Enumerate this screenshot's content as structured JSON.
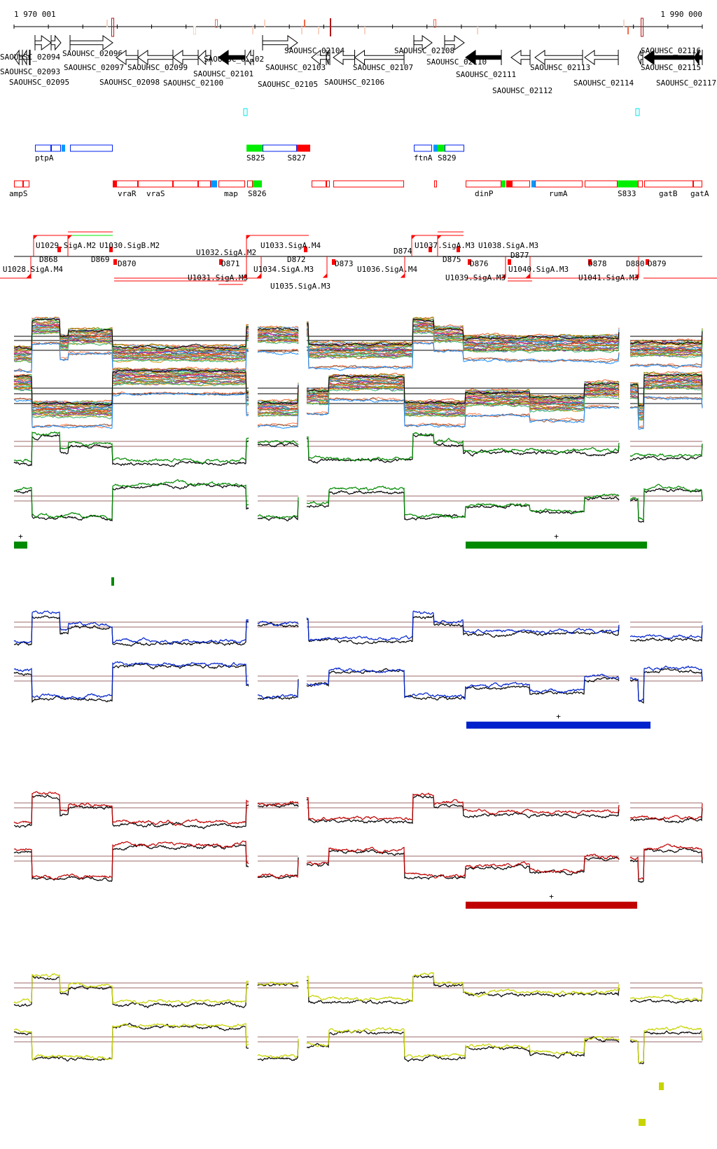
{
  "ruler": {
    "start_label": "1 970 001",
    "end_label": "1 990 000",
    "range_bp": [
      1970001,
      1990000
    ],
    "tick_interval_bp": 1000,
    "markers": [
      {
        "bp": 1972870,
        "color": "#b01818",
        "style": "outline"
      },
      {
        "bp": 1972707,
        "color": "#f7d3c4",
        "style": "fill"
      },
      {
        "bp": 1975250,
        "color": "#f7d3c4",
        "style": "outline"
      },
      {
        "bp": 1975881,
        "color": "#f26a4a",
        "style": "outline"
      },
      {
        "bp": 1976939,
        "color": "#f7d3c4",
        "style": "fill"
      },
      {
        "bp": 1977285,
        "color": "#f7d3c4",
        "style": "fill"
      },
      {
        "bp": 1978363,
        "color": "#f7d3c4",
        "style": "fill"
      },
      {
        "bp": 1978444,
        "color": "#f26a4a",
        "style": "fill"
      },
      {
        "bp": 1978851,
        "color": "#f7d3c4",
        "style": "fill"
      },
      {
        "bp": 1979197,
        "color": "#b01818",
        "style": "fill"
      },
      {
        "bp": 1980194,
        "color": "#f7d3c4",
        "style": "fill"
      },
      {
        "bp": 1982229,
        "color": "#f26a4a",
        "style": "outline"
      },
      {
        "bp": 1983470,
        "color": "#f7d3c4",
        "style": "fill"
      },
      {
        "bp": 1987722,
        "color": "#f7d3c4",
        "style": "fill"
      },
      {
        "bp": 1987844,
        "color": "#f26a4a",
        "style": "fill"
      },
      {
        "bp": 1988251,
        "color": "#b01818",
        "style": "outline"
      }
    ]
  },
  "genes": [
    {
      "name": "SAOUHSC_02093",
      "start": 1970001,
      "end": 1970245,
      "strand": "-",
      "filled": false
    },
    {
      "name": "SAOUHSC_02094",
      "start": 1970245,
      "end": 1970449,
      "strand": "-",
      "filled": false
    },
    {
      "name": "SAOUHSC_02095",
      "start": 1970449,
      "end": 1970470,
      "strand": "-",
      "filled": false
    },
    {
      "name": "SAOUHSC_02096",
      "start": 1970611,
      "end": 1971079,
      "strand": "+",
      "filled": false
    },
    {
      "name": "",
      "start": 1971079,
      "end": 1971364,
      "strand": "+",
      "filled": false
    },
    {
      "name": "SAOUHSC_02097",
      "start": 1971629,
      "end": 1972870,
      "strand": "+",
      "filled": false
    },
    {
      "name": "SAOUHSC_02098",
      "start": 1972972,
      "end": 1973602,
      "strand": "-",
      "filled": false
    },
    {
      "name": "SAOUHSC_02099",
      "start": 1973602,
      "end": 1974619,
      "strand": "-",
      "filled": false
    },
    {
      "name": "SAOUHSC_02100",
      "start": 1974619,
      "end": 1975352,
      "strand": "-",
      "filled": false
    },
    {
      "name": "SAOUHSC_02101",
      "start": 1975352,
      "end": 1975718,
      "strand": "-",
      "filled": false
    },
    {
      "name": "SAOUHSC_02102",
      "start": 1975942,
      "end": 1976715,
      "strand": "-",
      "filled": true
    },
    {
      "name": "SAOUHSC_02103",
      "start": 1976756,
      "end": 1976959,
      "strand": "-",
      "filled": false
    },
    {
      "name": "SAOUHSC_02105",
      "start": 1977223,
      "end": 1978240,
      "strand": "+",
      "filled": false
    },
    {
      "name": "SAOUHSC_02104",
      "start": 1978648,
      "end": 1979075,
      "strand": "-",
      "filled": false
    },
    {
      "name": "",
      "start": 1979075,
      "end": 1979177,
      "strand": "-",
      "filled": false
    },
    {
      "name": "SAOUHSC_02106",
      "start": 1979279,
      "end": 1979900,
      "strand": "-",
      "filled": false
    },
    {
      "name": "SAOUHSC_02107",
      "start": 1979900,
      "end": 1981334,
      "strand": "-",
      "filled": false
    },
    {
      "name": "SAOUHSC_02108",
      "start": 1981619,
      "end": 1982148,
      "strand": "+",
      "filled": false
    },
    {
      "name": "SAOUHSC_02110",
      "start": 1982513,
      "end": 1983083,
      "strand": "+",
      "filled": false
    },
    {
      "name": "SAOUHSC_02111",
      "start": 1983124,
      "end": 1984161,
      "strand": "-",
      "filled": true
    },
    {
      "name": "SAOUHSC_02112",
      "start": 1984446,
      "end": 1984995,
      "strand": "-",
      "filled": false
    },
    {
      "name": "SAOUHSC_02113",
      "start": 1985138,
      "end": 1986521,
      "strand": "-",
      "filled": false
    },
    {
      "name": "SAOUHSC_02114",
      "start": 1986582,
      "end": 1987559,
      "strand": "-",
      "filled": false
    },
    {
      "name": "SAOUHSC_02115",
      "start": 1988128,
      "end": 1988271,
      "strand": "-",
      "filled": false
    },
    {
      "name": "SAOUHSC_02116",
      "start": 1988312,
      "end": 1989756,
      "strand": "-",
      "filled": true
    },
    {
      "name": "SAOUHSC_02117",
      "start": 1989756,
      "end": 1990000,
      "strand": "-",
      "filled": true
    }
  ],
  "small_marks": [
    {
      "bp": 1976715,
      "color": "#00e5ee"
    },
    {
      "bp": 1988107,
      "color": "#00e5ee"
    }
  ],
  "operons_plus": [
    {
      "start": 1970611,
      "end": 1971079,
      "kind": "outline",
      "label": "ptpA"
    },
    {
      "start": 1971079,
      "end": 1971364,
      "kind": "outline",
      "label": ""
    },
    {
      "start": 1971384,
      "end": 1971486,
      "kind": "lightblue",
      "label": ""
    },
    {
      "start": 1971629,
      "end": 1972870,
      "kind": "outline",
      "label": ""
    },
    {
      "start": 1976756,
      "end": 1977223,
      "kind": "green",
      "label": "S825"
    },
    {
      "start": 1977223,
      "end": 1978220,
      "kind": "outline",
      "label": ""
    },
    {
      "start": 1978220,
      "end": 1978607,
      "kind": "red",
      "label": "S827"
    },
    {
      "start": 1981619,
      "end": 1982148,
      "kind": "outline",
      "label": "ftnA"
    },
    {
      "start": 1982188,
      "end": 1982310,
      "kind": "lightblue",
      "label": ""
    },
    {
      "start": 1982310,
      "end": 1982513,
      "kind": "green",
      "label": "S829"
    },
    {
      "start": 1982513,
      "end": 1983083,
      "kind": "outline",
      "label": ""
    }
  ],
  "operons_minus": [
    {
      "start": 1970001,
      "end": 1970265,
      "kind": "outline",
      "label": "ampS"
    },
    {
      "start": 1970265,
      "end": 1970449,
      "kind": "outline",
      "label": ""
    },
    {
      "start": 1972870,
      "end": 1972972,
      "kind": "red",
      "label": ""
    },
    {
      "start": 1972972,
      "end": 1973602,
      "kind": "outline",
      "label": "vraR"
    },
    {
      "start": 1973602,
      "end": 1974619,
      "kind": "outline",
      "label": "vraS"
    },
    {
      "start": 1974619,
      "end": 1975352,
      "kind": "outline",
      "label": ""
    },
    {
      "start": 1975352,
      "end": 1975718,
      "kind": "outline",
      "label": ""
    },
    {
      "start": 1975718,
      "end": 1975901,
      "kind": "lightblue",
      "label": ""
    },
    {
      "start": 1975942,
      "end": 1976715,
      "kind": "outline",
      "label": "map"
    },
    {
      "start": 1976776,
      "end": 1976939,
      "kind": "outline",
      "label": "S826"
    },
    {
      "start": 1976939,
      "end": 1977203,
      "kind": "green",
      "label": ""
    },
    {
      "start": 1978648,
      "end": 1979075,
      "kind": "outline",
      "label": ""
    },
    {
      "start": 1979075,
      "end": 1979177,
      "kind": "outline",
      "label": ""
    },
    {
      "start": 1979279,
      "end": 1981334,
      "kind": "outline",
      "label": ""
    },
    {
      "start": 1982208,
      "end": 1982289,
      "kind": "outline",
      "label": ""
    },
    {
      "start": 1983124,
      "end": 1984161,
      "kind": "outline",
      "label": "dinP"
    },
    {
      "start": 1984161,
      "end": 1984283,
      "kind": "green",
      "label": ""
    },
    {
      "start": 1984303,
      "end": 1984466,
      "kind": "red",
      "label": ""
    },
    {
      "start": 1984466,
      "end": 1984995,
      "kind": "outline",
      "label": ""
    },
    {
      "start": 1985036,
      "end": 1985138,
      "kind": "lightblue",
      "label": ""
    },
    {
      "start": 1985138,
      "end": 1986521,
      "kind": "outline",
      "label": "rumA"
    },
    {
      "start": 1986582,
      "end": 1987538,
      "kind": "outline",
      "label": ""
    },
    {
      "start": 1987538,
      "end": 1988128,
      "kind": "green",
      "label": "S833"
    },
    {
      "start": 1988128,
      "end": 1988271,
      "kind": "outline",
      "label": ""
    },
    {
      "start": 1988312,
      "end": 1989736,
      "kind": "outline",
      "label": "gatB"
    },
    {
      "start": 1989736,
      "end": 1990000,
      "kind": "outline",
      "label": "gatA"
    }
  ],
  "promoters": [
    "U1029.SigA.M2",
    "U1030.SigB.M2",
    "D868",
    "D869",
    "D870",
    "U1028.SigA.M4",
    "D871",
    "U1031.SigA.M3",
    "U1032.SigA.M2",
    "U1034.SigA.M3",
    "U1033.SigA.M4",
    "D872",
    "U1035.SigA.M3",
    "D873",
    "U1036.SigA.M4",
    "U1037.SigA.M3",
    "U1038.SigA.M3",
    "D874",
    "D875",
    "D876",
    "U1039.SigA.M3",
    "U1040.SigA.M3",
    "D877",
    "D878",
    "U1041.SigA.M3",
    "D879",
    "D880"
  ],
  "tracks": {
    "guide_color": "#9c6a6a",
    "multi_palette": [
      "#e8622c",
      "#8b8b00",
      "#6fb7ff",
      "#b03060",
      "#2ecc40",
      "#cc6600",
      "#7a3fbf",
      "#d4a017",
      "#3cb371",
      "#ff7f50",
      "#8a5a44",
      "#1e90ff",
      "#c71585",
      "#556b2f",
      "#ff4500",
      "#20b2aa"
    ],
    "groups": [
      {
        "color": "#008a00",
        "strand_mark": "+"
      },
      {
        "color": "#0022cc",
        "strand_mark": "+"
      },
      {
        "color": "#c00000",
        "strand_mark": "+"
      },
      {
        "color": "#c8d400",
        "strand_mark": ""
      }
    ]
  },
  "segments": {
    "green": [
      {
        "start": 1970001,
        "end": 1970387,
        "mark": "+"
      },
      {
        "start": 1983124,
        "end": 1988393,
        "mark": "+"
      },
      {
        "start": 1972829,
        "end": 1972910,
        "mark": ""
      }
    ],
    "blue": [
      {
        "start": 1983144,
        "end": 1988495,
        "mark": "+"
      }
    ],
    "red": [
      {
        "start": 1983124,
        "end": 1988108,
        "mark": "+"
      }
    ],
    "yellow": [
      {
        "start": 1988739,
        "end": 1988881,
        "mark": ""
      },
      {
        "start": 1988149,
        "end": 1988352,
        "mark": ""
      }
    ]
  }
}
